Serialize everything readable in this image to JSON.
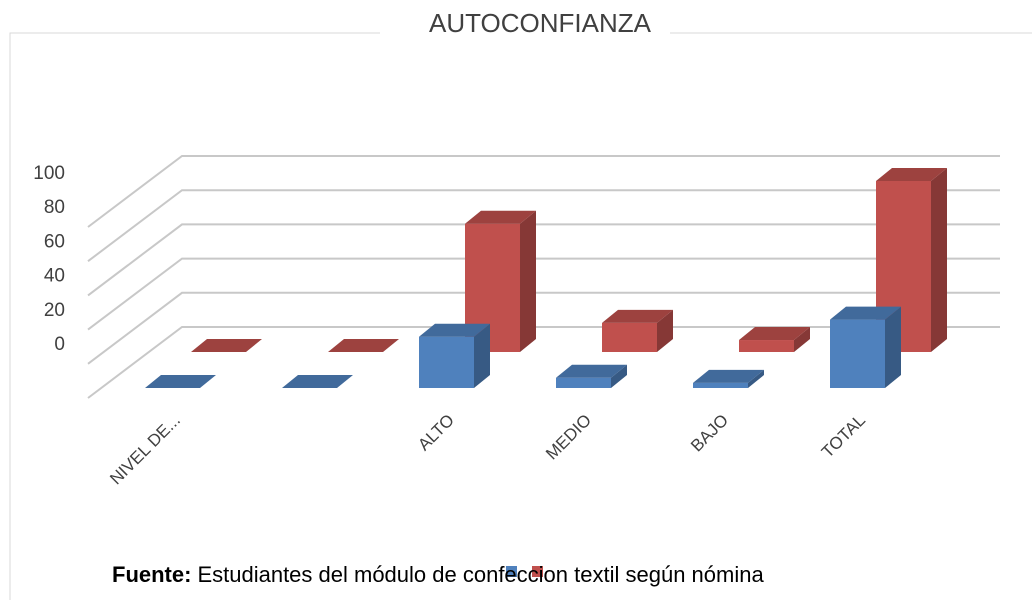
{
  "chart_data": {
    "type": "bar3d",
    "title": "AUTOCONFIANZA",
    "categories": [
      "NIVEL DE...",
      null,
      "ALTO",
      "MEDIO",
      "BAJO",
      "TOTAL"
    ],
    "series": [
      {
        "color": "#4f81bd",
        "values": [
          0,
          0,
          30,
          6,
          3,
          40
        ]
      },
      {
        "color": "#c0504d",
        "values": [
          0,
          0,
          75,
          17,
          7,
          100
        ]
      }
    ],
    "ylim": [
      0,
      100
    ],
    "yticks": [
      0,
      20,
      40,
      60,
      80,
      100
    ],
    "grid": true,
    "footnote": {
      "label": "Fuente:",
      "text": "Estudiantes del módulo de confeccion textil según nómina"
    }
  }
}
